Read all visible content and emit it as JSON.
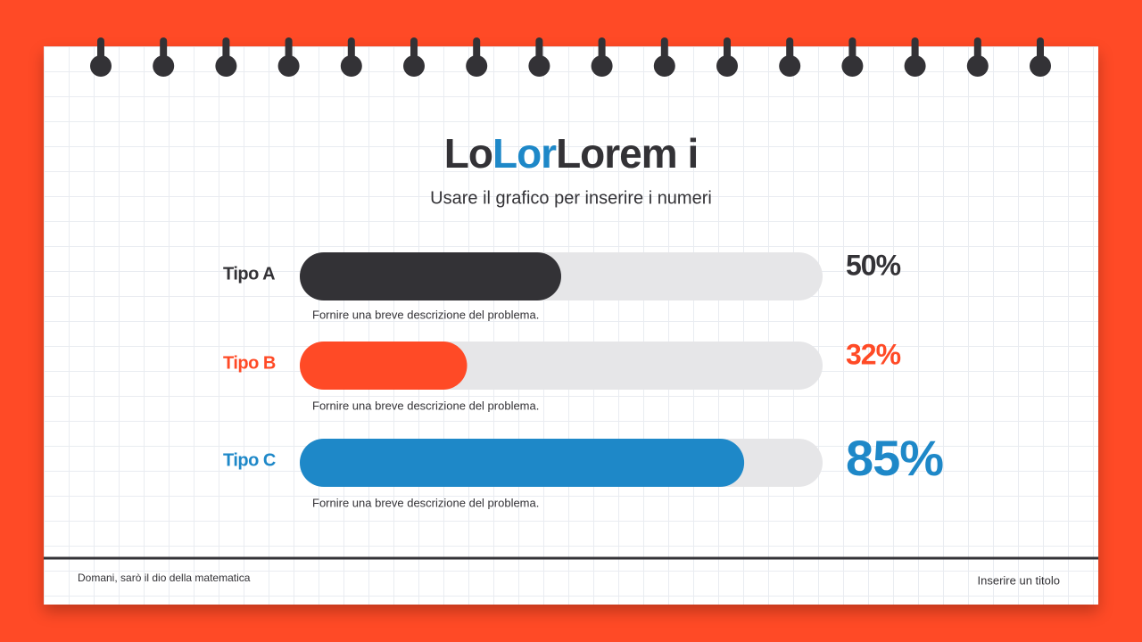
{
  "slide": {
    "title_parts": [
      "Lo",
      "Lor",
      "Lorem i"
    ],
    "subtitle": "Usare il grafico per inserire i numeri",
    "footer_left": "Domani, sarò il dio della matematica",
    "footer_right": "Inserire un titolo"
  },
  "chart_data": {
    "type": "bar",
    "orientation": "horizontal",
    "categories": [
      "Tipo A",
      "Tipo B",
      "Tipo C"
    ],
    "values": [
      50,
      32,
      85
    ],
    "value_labels": [
      "50%",
      "32%",
      "85%"
    ],
    "descriptions": [
      "Fornire una breve descrizione del problema.",
      "Fornire una breve descrizione del problema.",
      "Fornire una breve descrizione del problema."
    ],
    "colors": [
      "#333236",
      "#ff4a26",
      "#1e88c8"
    ],
    "xlim": [
      0,
      100
    ]
  }
}
